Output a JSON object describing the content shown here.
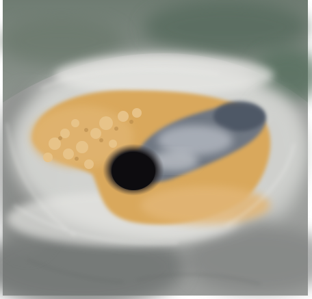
{
  "image": {
    "subject": "storm-eye",
    "colors": {
      "background": "#ffffff",
      "cloud_light": "#e2e2e0",
      "cloud_mid": "#a9aaa8",
      "cloud_dark": "#6b6e6d",
      "ocean_green": "#5f7466",
      "eye_orange": "#d9a85c",
      "eye_orange_light": "#e8c48a",
      "eye_blue_gray": "#6b7585",
      "eye_dark": "#1b1a1d"
    }
  }
}
